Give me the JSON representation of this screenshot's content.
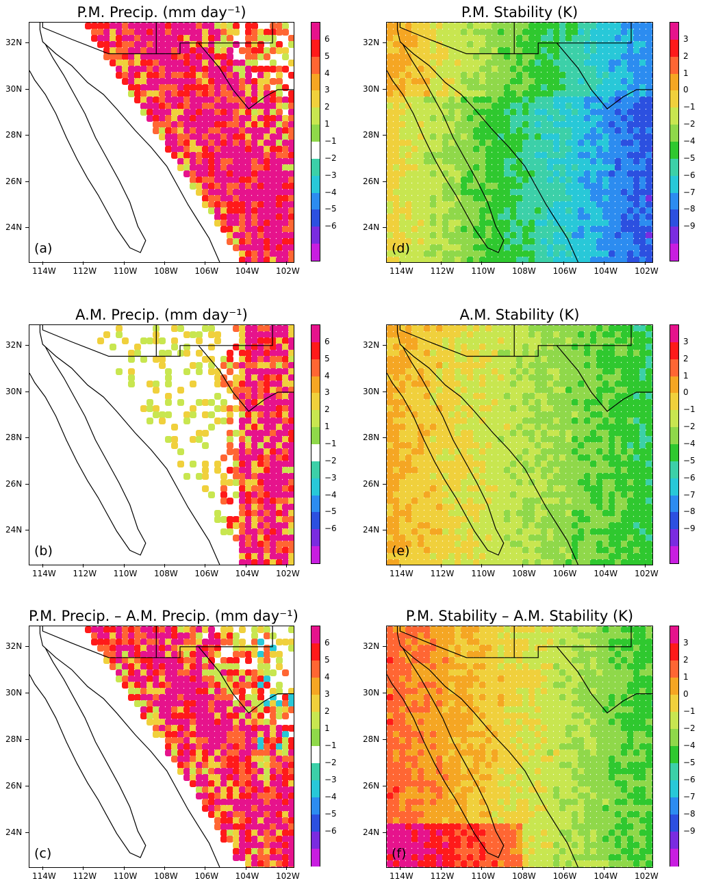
{
  "panels": [
    {
      "id": "a",
      "title": "P.M. Precip. (mm day⁻¹)",
      "letter": "(a)",
      "scale": "precip",
      "field": "pm_precip"
    },
    {
      "id": "d",
      "title": "P.M. Stability (K)",
      "letter": "(d)",
      "scale": "stab",
      "field": "pm_stab"
    },
    {
      "id": "b",
      "title": "A.M. Precip. (mm day⁻¹)",
      "letter": "(b)",
      "scale": "precip",
      "field": "am_precip"
    },
    {
      "id": "e",
      "title": "A.M. Stability (K)",
      "letter": "(e)",
      "scale": "stab",
      "field": "am_stab"
    },
    {
      "id": "c",
      "title": "P.M. Precip. – A.M. Precip. (mm day⁻¹)",
      "letter": "(c)",
      "scale": "precip",
      "field": "diff_precip"
    },
    {
      "id": "f",
      "title": "P.M. Stability – A.M. Stability (K)",
      "letter": "(f)",
      "scale": "stab",
      "field": "diff_stab"
    }
  ],
  "axes": {
    "lon_ticks": [
      "114W",
      "112W",
      "110W",
      "108W",
      "106W",
      "104W",
      "102W"
    ],
    "lat_ticks": [
      "32N",
      "30N",
      "28N",
      "26N",
      "24N"
    ]
  },
  "scales": {
    "precip": {
      "labels": [
        "6",
        "5",
        "4",
        "3",
        "2",
        "1",
        "−1",
        "−2",
        "−3",
        "−4",
        "−5",
        "−6"
      ],
      "colors": [
        "#e6138c",
        "#ff1a1a",
        "#ff6633",
        "#f5a623",
        "#f0d03c",
        "#c8e650",
        "#8fd84a",
        "#ffffff",
        "#3cd0a8",
        "#28c8d8",
        "#2c8cf0",
        "#2c50e0",
        "#7a2ce0",
        "#c81ee0"
      ]
    },
    "stab": {
      "labels": [
        "3",
        "2",
        "1",
        "0",
        "−1",
        "−2",
        "−4",
        "−5",
        "−6",
        "−7",
        "−8",
        "−9"
      ],
      "colors": [
        "#e6138c",
        "#ff1a1a",
        "#ff6633",
        "#f5a623",
        "#f0d03c",
        "#c8e650",
        "#8fd84a",
        "#2fc82f",
        "#3cd0a8",
        "#28c8d8",
        "#2c8cf0",
        "#2c50e0",
        "#7a2ce0",
        "#c81ee0"
      ]
    }
  }
}
